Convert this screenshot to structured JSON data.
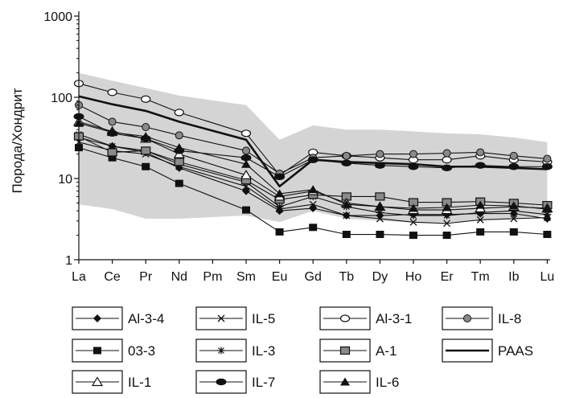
{
  "chart_data": {
    "type": "line",
    "ylabel": "Порода/Хондрит",
    "xlabel": "",
    "y_scale": "log",
    "ylim": [
      1,
      1000
    ],
    "y_ticks": [
      "1",
      "10",
      "100",
      "1000"
    ],
    "categories": [
      "La",
      "Ce",
      "Pr",
      "Nd",
      "Pm",
      "Sm",
      "Eu",
      "Gd",
      "Tb",
      "Dy",
      "Ho",
      "Er",
      "Tm",
      "Ib",
      "Lu"
    ],
    "band": {
      "color": "#d4d4d4",
      "upper": [
        200,
        160,
        130,
        105,
        null,
        80,
        30,
        45,
        40,
        40,
        38,
        36,
        35,
        32,
        28
      ],
      "lower": [
        4.8,
        4.2,
        3.2,
        3.2,
        null,
        3.5,
        2.9,
        4.0,
        3.2,
        3.0,
        2.9,
        2.9,
        3.0,
        3.2,
        3.5
      ]
    },
    "series": [
      {
        "name": "Al-3-4",
        "marker": "diamond",
        "values": [
          32,
          25,
          21,
          13.5,
          null,
          7,
          4,
          4.3,
          3.5,
          3.5,
          3.6,
          3.6,
          3.7,
          3.7,
          3.2
        ]
      },
      {
        "name": "IL-5",
        "marker": "x",
        "values": [
          28,
          22,
          20,
          14,
          null,
          8,
          4.2,
          4.8,
          3.5,
          3.2,
          2.9,
          2.8,
          3.1,
          3.2,
          3.3
        ]
      },
      {
        "name": "Al-3-1",
        "marker": "open-circle",
        "values": [
          148,
          115,
          95,
          65,
          null,
          36,
          11,
          21,
          19,
          18,
          17,
          17,
          19,
          17,
          16
        ]
      },
      {
        "name": "IL-8",
        "marker": "gray-circle",
        "values": [
          80,
          50,
          43,
          34,
          null,
          22,
          11.5,
          18,
          19,
          20,
          20,
          20.5,
          21,
          19,
          17.5
        ]
      },
      {
        "name": "03-3",
        "marker": "square",
        "values": [
          24,
          18,
          14,
          8.7,
          null,
          4.1,
          2.2,
          2.5,
          2.05,
          2.05,
          2.0,
          2.0,
          2.2,
          2.2,
          2.05
        ]
      },
      {
        "name": "IL-3",
        "marker": "star",
        "values": [
          35,
          25,
          22,
          15,
          null,
          9,
          4.5,
          6,
          4.5,
          3.8,
          3.5,
          3.5,
          3.8,
          4,
          3.6
        ]
      },
      {
        "name": "A-1",
        "marker": "gray-square",
        "values": [
          33,
          21,
          22,
          16,
          null,
          9.5,
          5.5,
          6.3,
          6,
          6,
          5.1,
          5.1,
          5.2,
          5,
          4.7
        ]
      },
      {
        "name": "PAAS",
        "marker": "none",
        "values": [
          103,
          82,
          68,
          50,
          null,
          30,
          8,
          17,
          16,
          15.5,
          15,
          14,
          14,
          13.5,
          13
        ]
      },
      {
        "name": "IL-1",
        "marker": "open-triangle",
        "values": [
          50,
          38,
          31,
          20,
          null,
          11,
          6,
          7,
          5,
          4.5,
          4.1,
          4.1,
          4.3,
          4.5,
          4.3
        ]
      },
      {
        "name": "IL-7",
        "marker": "ellipse",
        "values": [
          58,
          36,
          31,
          22,
          null,
          18,
          10.5,
          17,
          15.5,
          14.5,
          14,
          13.5,
          14.5,
          14,
          14
        ]
      },
      {
        "name": "IL-6",
        "marker": "filled-triangle",
        "values": [
          48,
          37,
          33,
          24,
          null,
          15,
          6.5,
          7.3,
          4.8,
          4.5,
          4.3,
          4.4,
          4.7,
          4.6,
          4.2
        ]
      }
    ],
    "legend_placement": "bottom"
  }
}
